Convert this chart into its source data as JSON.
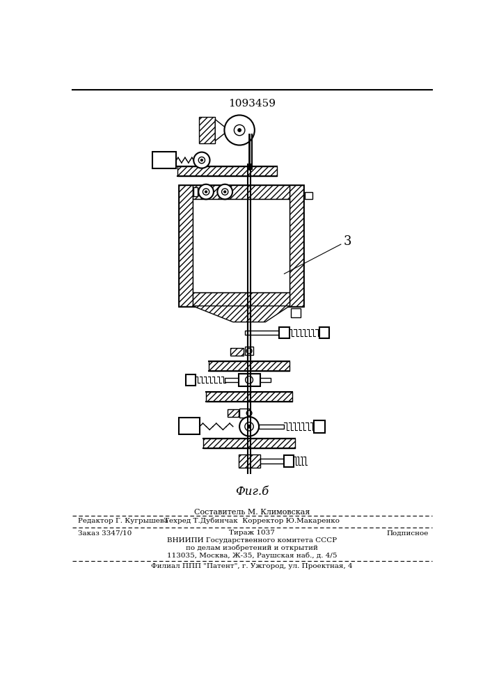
{
  "patent_number": "1093459",
  "figure_label": "Фиг.б",
  "footer_sestavitel": "Составитель М. Климовская",
  "footer_editor": "Редактор Г. Кугрышева",
  "footer_tekhred": "Техред Т.Дубинчак  Корректор Ю.Макаренко",
  "footer_zakaz": "Заказ 3347/10",
  "footer_tirazh": "Тираж 1037",
  "footer_podpisnoe": "Подписное",
  "footer_vniipи": "ВНИИПИ Государственного комитета СССР",
  "footer_dela": "по делам изобретений и открытий",
  "footer_addr": "113035, Москва, Ж-35, Раушская наб., д. 4/5",
  "footer_filial": "Филиал ППП \"Патент\", г. Ужгород, ул. Проектная, 4",
  "bg_color": "#ffffff",
  "line_color": "#000000"
}
